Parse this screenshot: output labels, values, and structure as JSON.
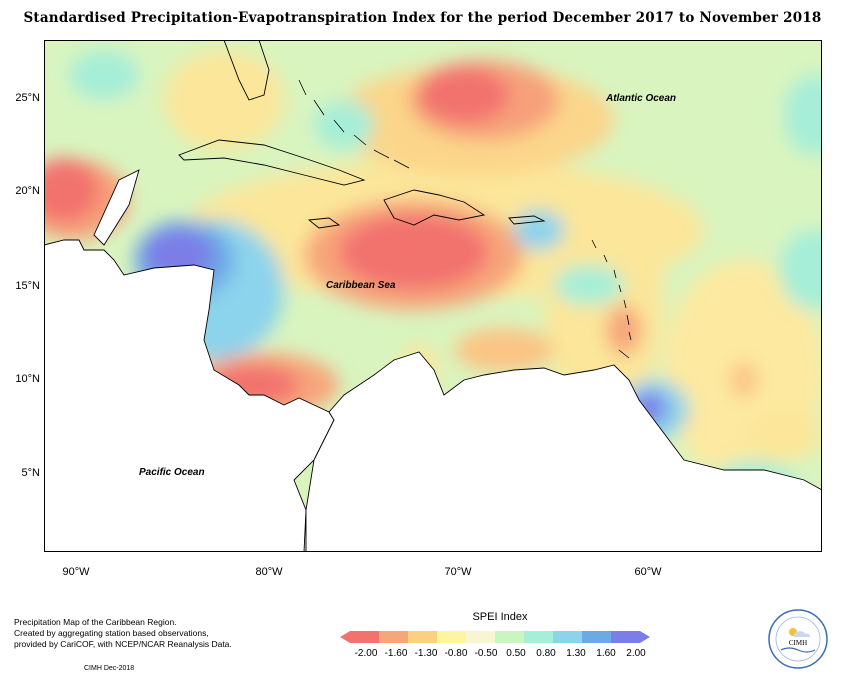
{
  "title": "Standardised Precipitation-Evapotranspiration Index for the period December 2017 to November 2018",
  "axes": {
    "lat_labels": [
      "25°N",
      "20°N",
      "15°N",
      "10°N",
      "5°N"
    ],
    "lon_labels": [
      "90°W",
      "80°W",
      "70°W",
      "60°W"
    ]
  },
  "map_labels": {
    "atlantic": "Atlantic Ocean",
    "caribbean": "Caribbean Sea",
    "pacific": "Pacific Ocean"
  },
  "footer": {
    "line1": "Precipitation Map of the Caribbean Region.",
    "line2": "Created by aggregating station based observations,",
    "line3": "provided by CariCOF, with NCEP/NCAR Reanalysis Data.",
    "credit": "CIMH Dec-2018"
  },
  "legend": {
    "title": "SPEI Index",
    "labels": [
      "-2.00",
      "-1.60",
      "-1.30",
      "-0.80",
      "-0.50",
      "0.50",
      "0.80",
      "1.30",
      "1.60",
      "2.00"
    ],
    "colors": [
      "#f2726e",
      "#f7a57a",
      "#fbd081",
      "#fdf5a0",
      "#f6f7d2",
      "#c8f5c0",
      "#a6eed8",
      "#8cd3ec",
      "#6ca9e6",
      "#7b7de8"
    ]
  },
  "logo": {
    "text": "CIMH"
  }
}
